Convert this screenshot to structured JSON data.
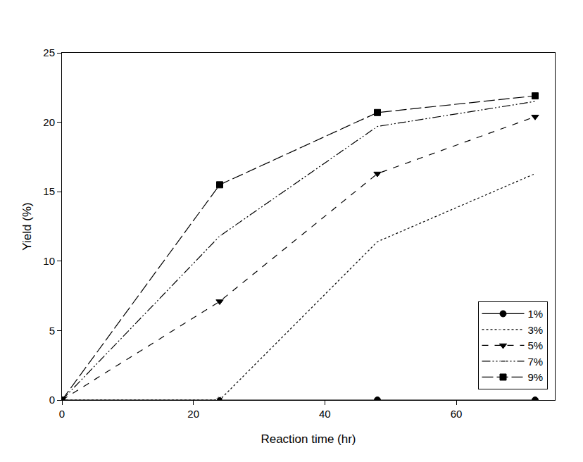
{
  "chart_data": {
    "type": "line",
    "x_label": "Reaction time (hr)",
    "y_label": "Yield (%)",
    "x": [
      0,
      24,
      48,
      72
    ],
    "series": [
      {
        "name": "1%",
        "color": "#000000",
        "marker": "circle",
        "line_style": "solid",
        "values": [
          0,
          0,
          0,
          0
        ]
      },
      {
        "name": "3%",
        "color": "#000000",
        "marker": "circle-open",
        "line_style": "dotted",
        "values": [
          0,
          0,
          11.4,
          16.3
        ]
      },
      {
        "name": "5%",
        "color": "#000000",
        "marker": "triangle-down",
        "line_style": "dashed",
        "values": [
          0,
          7.1,
          16.3,
          20.4
        ]
      },
      {
        "name": "7%",
        "color": "#000000",
        "marker": "triangle-up-open",
        "line_style": "dash-dot-dot",
        "values": [
          0,
          11.8,
          19.7,
          21.5
        ]
      },
      {
        "name": "9%",
        "color": "#000000",
        "marker": "square",
        "line_style": "long-dash",
        "values": [
          0,
          15.5,
          20.7,
          21.9
        ]
      }
    ],
    "xlim": [
      0,
      75
    ],
    "xticks": [
      0,
      20,
      40,
      60
    ],
    "ylim": [
      0,
      25
    ],
    "yticks": [
      0,
      5,
      10,
      15,
      20,
      25
    ],
    "grid": false,
    "legend": "bottom right"
  }
}
